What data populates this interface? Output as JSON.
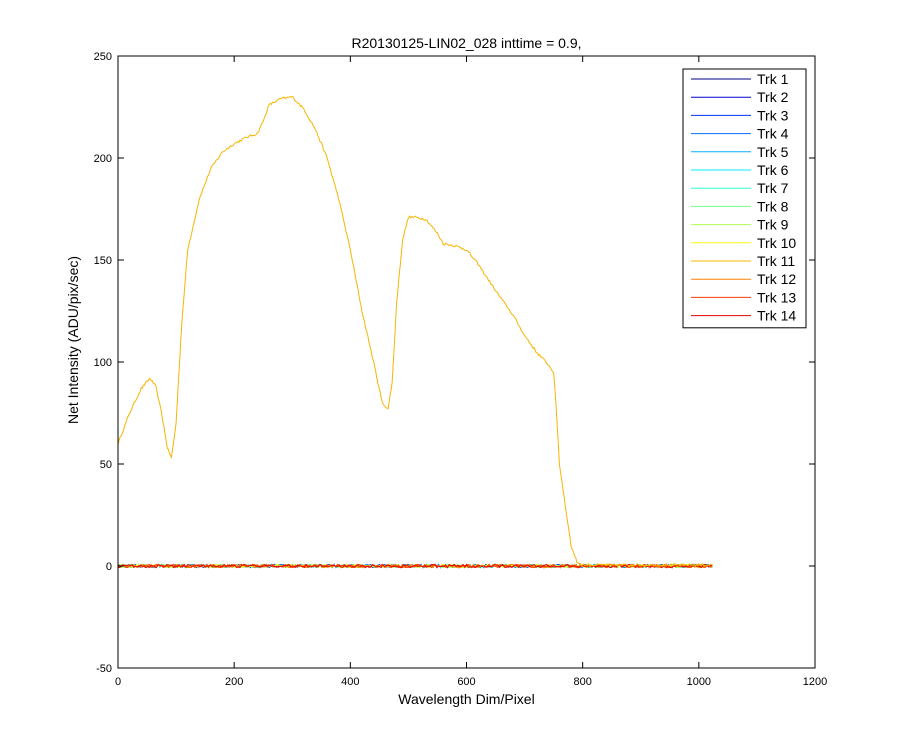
{
  "chart_data": {
    "type": "line",
    "title": "R20130125-LIN02_028 inttime = 0.9,",
    "xlabel": "Wavelength Dim/Pixel",
    "ylabel": "Net Intensity (ADU/pix/sec)",
    "xlim": [
      0,
      1200
    ],
    "ylim": [
      -50,
      250
    ],
    "xticks": [
      0,
      200,
      400,
      600,
      800,
      1000,
      1200
    ],
    "xtick_labels": [
      "0",
      "200",
      "400",
      "600",
      "800",
      "1000",
      "1200"
    ],
    "yticks": [
      -50,
      0,
      50,
      100,
      150,
      200,
      250
    ],
    "ytick_labels": [
      "-50",
      "0",
      "50",
      "100",
      "150",
      "200",
      "250"
    ],
    "grid": false,
    "legend_position": "top-right",
    "series": [
      {
        "name": "Trk 1",
        "color": "#00008f",
        "x": [
          0,
          1024
        ],
        "y": [
          0,
          0
        ]
      },
      {
        "name": "Trk 2",
        "color": "#0000d0",
        "x": [
          0,
          1024
        ],
        "y": [
          0,
          0
        ]
      },
      {
        "name": "Trk 3",
        "color": "#0030ff",
        "x": [
          0,
          1024
        ],
        "y": [
          0,
          0
        ]
      },
      {
        "name": "Trk 4",
        "color": "#0070ff",
        "x": [
          0,
          1024
        ],
        "y": [
          0,
          0
        ]
      },
      {
        "name": "Trk 5",
        "color": "#00afff",
        "x": [
          0,
          1024
        ],
        "y": [
          0,
          0
        ]
      },
      {
        "name": "Trk 6",
        "color": "#00efff",
        "x": [
          0,
          1024
        ],
        "y": [
          0,
          0
        ]
      },
      {
        "name": "Trk 7",
        "color": "#30ffcf",
        "x": [
          0,
          1024
        ],
        "y": [
          0,
          0
        ]
      },
      {
        "name": "Trk 8",
        "color": "#70ff8f",
        "x": [
          0,
          1024
        ],
        "y": [
          0,
          0
        ]
      },
      {
        "name": "Trk 9",
        "color": "#afff50",
        "x": [
          0,
          1024
        ],
        "y": [
          0,
          0
        ]
      },
      {
        "name": "Trk 10",
        "color": "#efff10",
        "x": [
          0,
          1024
        ],
        "y": [
          0,
          0
        ]
      },
      {
        "name": "Trk 11",
        "color": "#f7b500",
        "x": [
          0,
          20,
          40,
          55,
          65,
          75,
          85,
          92,
          100,
          110,
          120,
          140,
          160,
          180,
          200,
          220,
          240,
          250,
          260,
          280,
          300,
          320,
          340,
          360,
          380,
          400,
          420,
          440,
          455,
          465,
          472,
          480,
          490,
          500,
          510,
          530,
          550,
          560,
          580,
          600,
          620,
          650,
          680,
          700,
          720,
          740,
          750,
          755,
          760,
          770,
          780,
          790,
          800,
          900,
          1024
        ],
        "y": [
          60,
          75,
          87,
          92,
          88,
          75,
          58,
          53,
          70,
          120,
          155,
          180,
          195,
          203,
          207,
          210,
          212,
          218,
          226,
          229,
          230,
          224,
          214,
          200,
          180,
          155,
          125,
          100,
          80,
          77,
          90,
          130,
          160,
          171,
          171,
          170,
          163,
          158,
          157,
          155,
          148,
          135,
          123,
          113,
          105,
          99,
          95,
          75,
          50,
          30,
          10,
          2,
          0.5,
          0.5,
          0.5
        ]
      },
      {
        "name": "Trk 12",
        "color": "#ff8000",
        "x": [
          0,
          1024
        ],
        "y": [
          0,
          0
        ]
      },
      {
        "name": "Trk 13",
        "color": "#ff3b00",
        "x": [
          0,
          1024
        ],
        "y": [
          0,
          0
        ]
      },
      {
        "name": "Trk 14",
        "color": "#e80000",
        "x": [
          0,
          1024
        ],
        "y": [
          0,
          0
        ]
      }
    ]
  }
}
